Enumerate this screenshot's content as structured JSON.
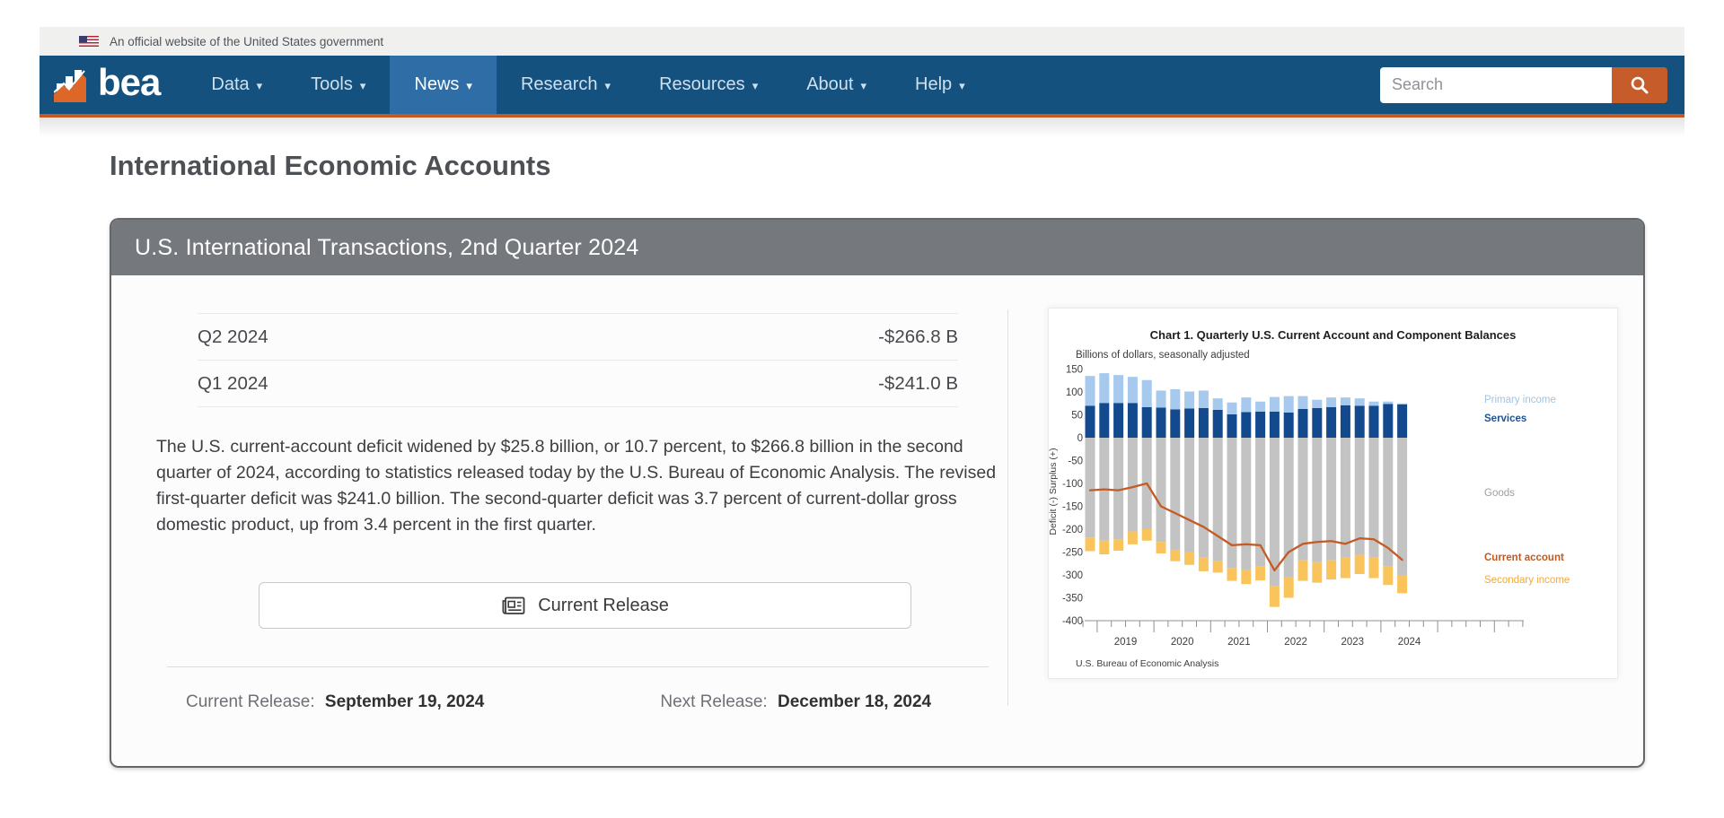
{
  "banner": {
    "text": "An official website of the United States government"
  },
  "nav": {
    "logo_text": "bea",
    "items": [
      {
        "label": "Data"
      },
      {
        "label": "Tools"
      },
      {
        "label": "News",
        "active": true
      },
      {
        "label": "Research"
      },
      {
        "label": "Resources"
      },
      {
        "label": "About"
      },
      {
        "label": "Help"
      }
    ],
    "search_placeholder": "Search"
  },
  "page": {
    "title": "International Economic Accounts"
  },
  "panel": {
    "header": "U.S. International Transactions, 2nd Quarter 2024",
    "rows": [
      {
        "label": "Q2 2024",
        "value": "-$266.8 B"
      },
      {
        "label": "Q1 2024",
        "value": "-$241.0 B"
      }
    ],
    "summary": "The U.S. current-account deficit widened by $25.8 billion, or 10.7 percent, to $266.8 billion in the second quarter of 2024, according to statistics released today by the U.S. Bureau of Economic Analysis. The revised first-quarter deficit was $241.0 billion. The second-quarter deficit was 3.7 percent of current-dollar gross domestic product, up from 3.4 percent in the first quarter.",
    "button_label": "Current Release",
    "current_release": {
      "label": "Current Release:",
      "value": "September 19, 2024"
    },
    "next_release": {
      "label": "Next Release:",
      "value": "December 18, 2024"
    }
  },
  "chart_data": {
    "type": "bar",
    "subtype": "stacked-bar-with-line",
    "title": "Chart 1. Quarterly U.S. Current Account and Component Balances",
    "subtitle": "Billions of dollars, seasonally adjusted",
    "ylabel": "Deficit (-) Surplus (+)",
    "source": "U.S. Bureau of Economic Analysis",
    "ylim": [
      -400,
      150
    ],
    "ytick_step": 50,
    "grid": false,
    "legend_position": "right",
    "x_years": [
      "2019",
      "2020",
      "2021",
      "2022",
      "2023",
      "2024"
    ],
    "quarters": [
      "2018 Q4",
      "2019 Q1",
      "2019 Q2",
      "2019 Q3",
      "2019 Q4",
      "2020 Q1",
      "2020 Q2",
      "2020 Q3",
      "2020 Q4",
      "2021 Q1",
      "2021 Q2",
      "2021 Q3",
      "2021 Q4",
      "2022 Q1",
      "2022 Q2",
      "2022 Q3",
      "2022 Q4",
      "2023 Q1",
      "2023 Q2",
      "2023 Q3",
      "2023 Q4",
      "2024 Q1",
      "2024 Q2"
    ],
    "series": [
      {
        "name": "Services",
        "type": "bar",
        "color": "#134a8e",
        "legend_color": "#1d5394",
        "values": [
          70,
          76,
          76,
          76,
          67,
          66,
          62,
          64,
          65,
          61,
          51,
          56,
          57,
          57,
          55,
          63,
          65,
          67,
          71,
          70,
          70,
          74,
          73
        ]
      },
      {
        "name": "Primary income",
        "type": "bar",
        "color": "#a6c9ed",
        "legend_color": "#9cc4e9",
        "values": [
          65,
          65,
          61,
          57,
          59,
          37,
          44,
          37,
          38,
          25,
          26,
          32,
          22,
          32,
          36,
          28,
          18,
          21,
          17,
          16,
          9,
          5,
          2
        ]
      },
      {
        "name": "Goods",
        "type": "bar",
        "color": "#c3c3c3",
        "legend_color": "#9e9e9e",
        "values": [
          -218,
          -225,
          -222,
          -205,
          -200,
          -228,
          -245,
          -250,
          -262,
          -270,
          -285,
          -290,
          -282,
          -325,
          -305,
          -268,
          -272,
          -268,
          -262,
          -256,
          -262,
          -282,
          -300
        ]
      },
      {
        "name": "Secondary income",
        "type": "bar",
        "color": "#f9c45c",
        "legend_color": "#f0a93c",
        "values": [
          -30,
          -30,
          -25,
          -28,
          -25,
          -25,
          -25,
          -28,
          -30,
          -25,
          -28,
          -30,
          -30,
          -45,
          -45,
          -45,
          -45,
          -42,
          -45,
          -42,
          -45,
          -40,
          -40
        ]
      },
      {
        "name": "Current account",
        "type": "line",
        "color": "#c35b24",
        "legend_color": "#bf5a1f",
        "values": [
          -115,
          -113,
          -115,
          -108,
          -100,
          -150,
          -165,
          -180,
          -195,
          -215,
          -235,
          -233,
          -235,
          -290,
          -250,
          -232,
          -228,
          -226,
          -232,
          -220,
          -222,
          -241,
          -267
        ]
      }
    ]
  }
}
